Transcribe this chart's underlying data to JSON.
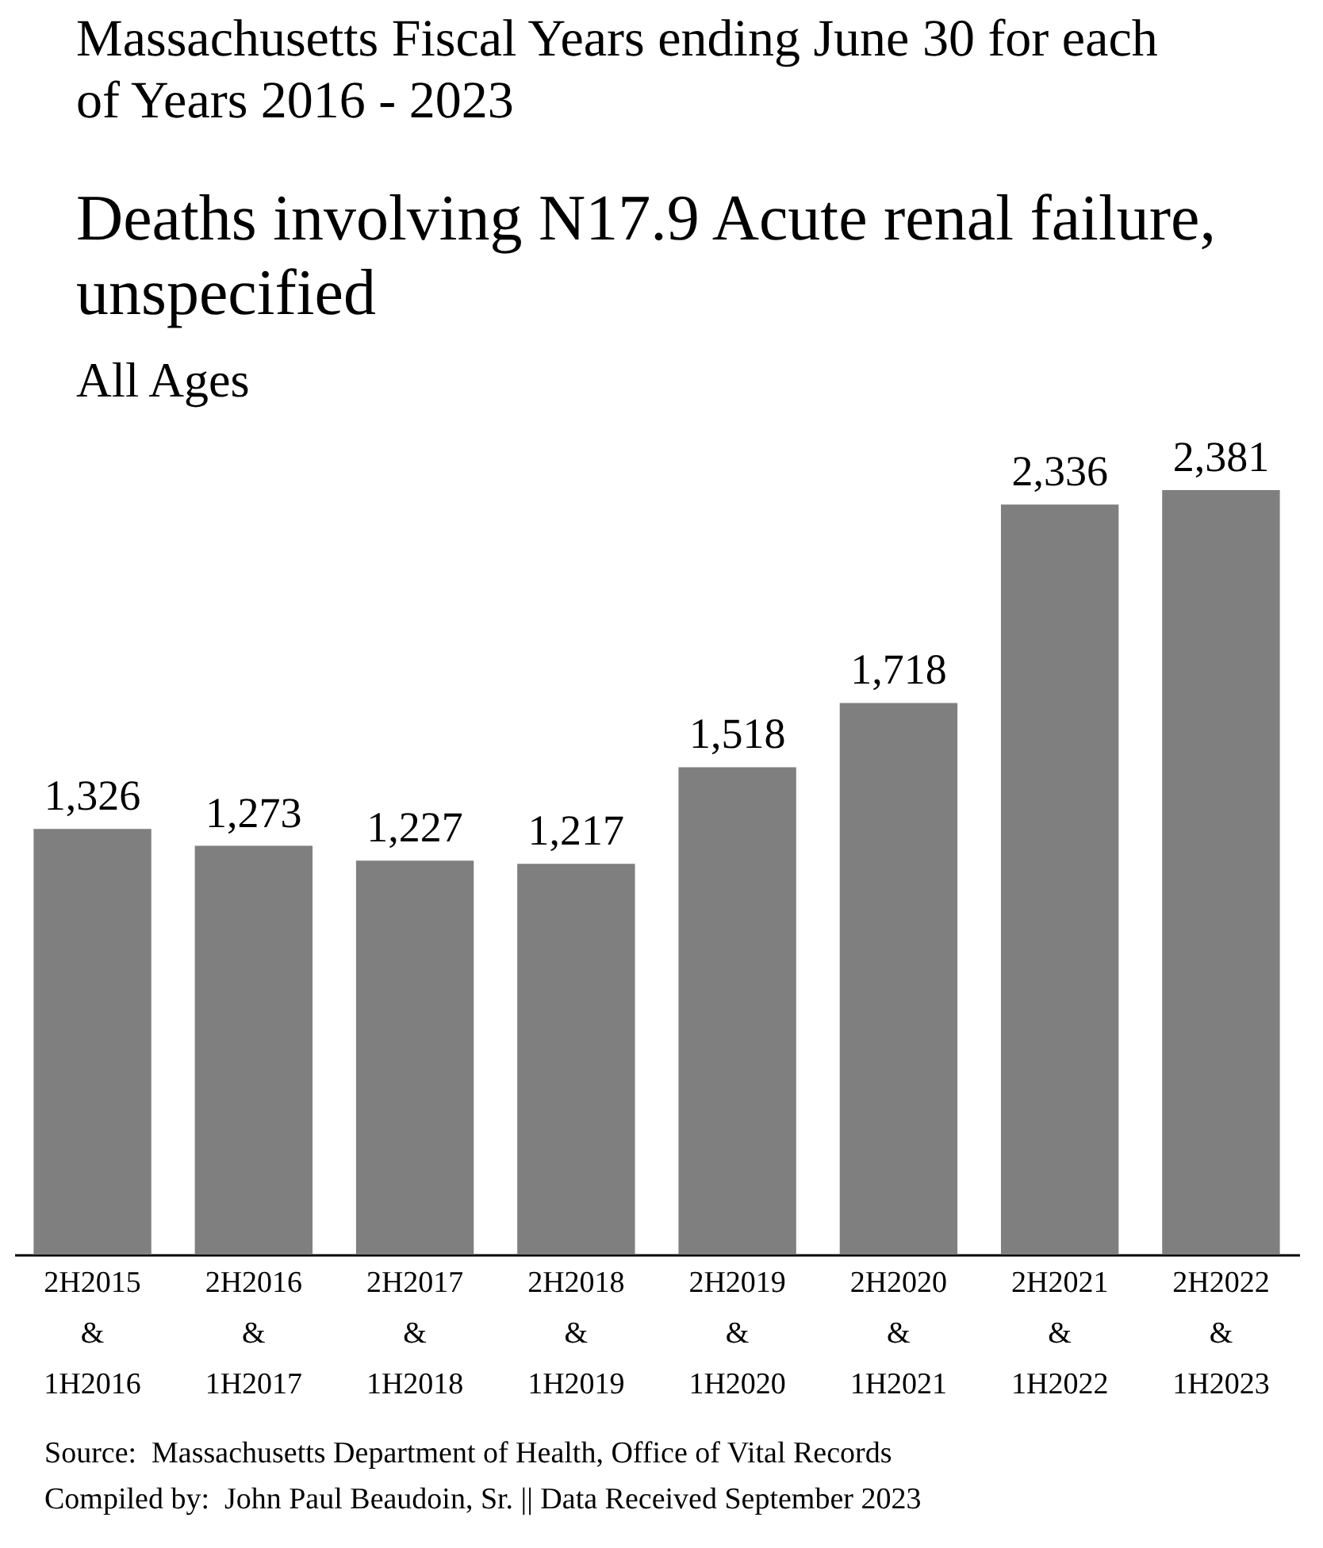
{
  "chart_data": {
    "type": "bar",
    "title": "Deaths involving N17.9 Acute renal failure, unspecified",
    "subtitle": "All Ages",
    "categories": [
      "2H2015 & 1H2016",
      "2H2016 & 1H2017",
      "2H2017 & 1H2018",
      "2H2018 & 1H2019",
      "2H2019 & 1H2020",
      "2H2020 & 1H2021",
      "2H2021 & 1H2022",
      "2H2022 & 1H2023"
    ],
    "values": [
      1326,
      1273,
      1227,
      1217,
      1518,
      1718,
      2336,
      2381
    ],
    "color": "#7f7f7f",
    "value_labels": [
      "1,326",
      "1,273",
      "1,227",
      "1,217",
      "1,518",
      "1,718",
      "2,336",
      "2,381"
    ],
    "annotations": [
      "Massachusetts Fiscal Years ending June 30 for each of Years 2016 - 2023",
      "Source:  Massachusetts Department of Health, Office of Vital Records",
      "Compiled by:  John Paul Beaudoin, Sr. || Data Received September 2023"
    ]
  }
}
